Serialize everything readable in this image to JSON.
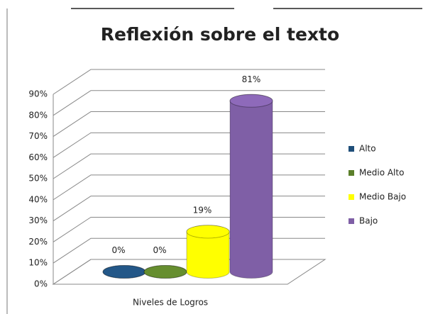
{
  "chart_data": {
    "type": "cylinder3d",
    "title": "Reflexión sobre el texto",
    "categories": [
      "Niveles de Logros"
    ],
    "series": [
      {
        "name": "Alto",
        "color": "#1f4e79",
        "values": [
          0
        ],
        "value_labels": [
          "0%"
        ]
      },
      {
        "name": "Medio Alto",
        "color": "#5b7f2a",
        "values": [
          0
        ],
        "value_labels": [
          "0%"
        ]
      },
      {
        "name": "Medio Bajo",
        "color": "#ffff00",
        "values": [
          19
        ],
        "value_labels": [
          "19%"
        ]
      },
      {
        "name": "Bajo",
        "color": "#7f5fa6",
        "values": [
          81
        ],
        "value_labels": [
          "81%"
        ]
      }
    ],
    "ylim": [
      0,
      90
    ],
    "yticks": [
      {
        "value": 0,
        "label": "0%"
      },
      {
        "value": 10,
        "label": "10%"
      },
      {
        "value": 20,
        "label": "20%"
      },
      {
        "value": 30,
        "label": "30%"
      },
      {
        "value": 40,
        "label": "40%"
      },
      {
        "value": 50,
        "label": "50%"
      },
      {
        "value": 60,
        "label": "60%"
      },
      {
        "value": 70,
        "label": "70%"
      },
      {
        "value": 80,
        "label": "80%"
      },
      {
        "value": 90,
        "label": "90%"
      }
    ],
    "grid": true,
    "legend": "right"
  }
}
